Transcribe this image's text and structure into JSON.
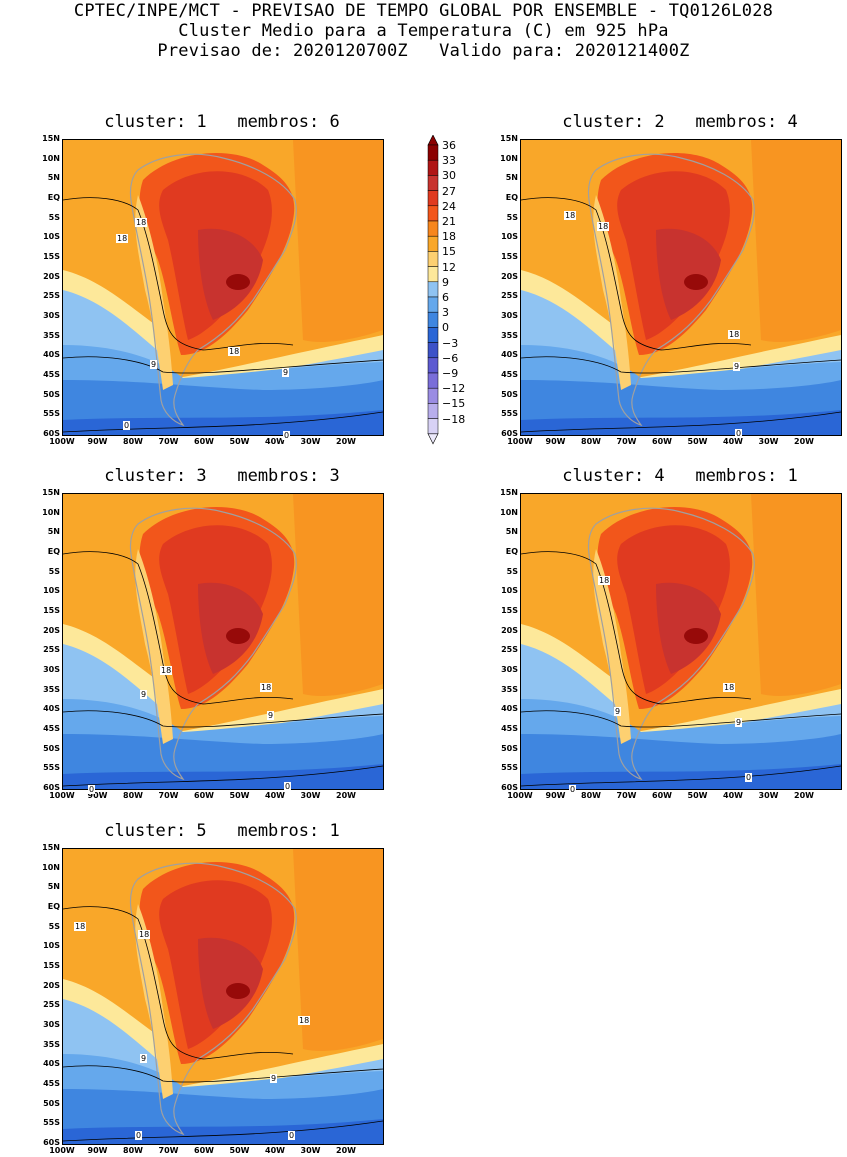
{
  "header": {
    "line1": "CPTEC/INPE/MCT - PREVISAO DE TEMPO GLOBAL POR ENSEMBLE - TQ0126L028",
    "line2": "Cluster Medio para a Temperatura (C) em 925 hPa",
    "line3": "Previsao de: 2020120700Z   Valido para: 2020121400Z"
  },
  "axes": {
    "lat_ticks": [
      "15N",
      "10N",
      "5N",
      "EQ",
      "5S",
      "10S",
      "15S",
      "20S",
      "25S",
      "30S",
      "35S",
      "40S",
      "45S",
      "50S",
      "55S",
      "60S"
    ],
    "lon_ticks": [
      "100W",
      "90W",
      "80W",
      "70W",
      "60W",
      "50W",
      "40W",
      "30W",
      "20W"
    ]
  },
  "colorbar": {
    "labels": [
      "36",
      "33",
      "30",
      "27",
      "24",
      "21",
      "18",
      "15",
      "12",
      "9",
      "6",
      "3",
      "0",
      "-3",
      "-6",
      "-9",
      "-12",
      "-15",
      "-18"
    ],
    "colors": [
      "#8b0000",
      "#b01515",
      "#c8332f",
      "#e03a20",
      "#f2561b",
      "#f7861c",
      "#f9a729",
      "#fdd071",
      "#fde89a",
      "#8fc3f2",
      "#65a8ec",
      "#3f86e0",
      "#2a66d6",
      "#3c52c8",
      "#5d5ad1",
      "#7a6ed9",
      "#9a8ce3",
      "#b8aeec",
      "#d8d2f5"
    ]
  },
  "panels": [
    {
      "title": "cluster: 1   membros: 6",
      "contour_labels": [
        "18",
        "18",
        "18",
        "9",
        "9",
        "0",
        "0"
      ]
    },
    {
      "title": "cluster: 2   membros: 4",
      "contour_labels": [
        "18",
        "18",
        "18",
        "9",
        "0"
      ]
    },
    {
      "title": "cluster: 3   membros: 3",
      "contour_labels": [
        "18",
        "18",
        "9",
        "9",
        "0",
        "0"
      ]
    },
    {
      "title": "cluster: 4   membros: 1",
      "contour_labels": [
        "18",
        "18",
        "9",
        "9",
        "0",
        "0"
      ]
    },
    {
      "title": "cluster: 5   membros: 1",
      "contour_labels": [
        "18",
        "18",
        "18",
        "9",
        "9",
        "0",
        "0"
      ]
    }
  ]
}
